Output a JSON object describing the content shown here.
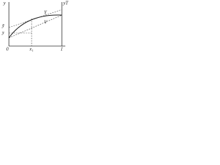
{
  "labels": {
    "y_axis": "y",
    "y_right": "yT",
    "curve": "Y",
    "line": "V",
    "left_upper": "ȳ",
    "left_lower": "y",
    "origin": "0",
    "x_mid": "x₁",
    "x_end": "1"
  }
}
